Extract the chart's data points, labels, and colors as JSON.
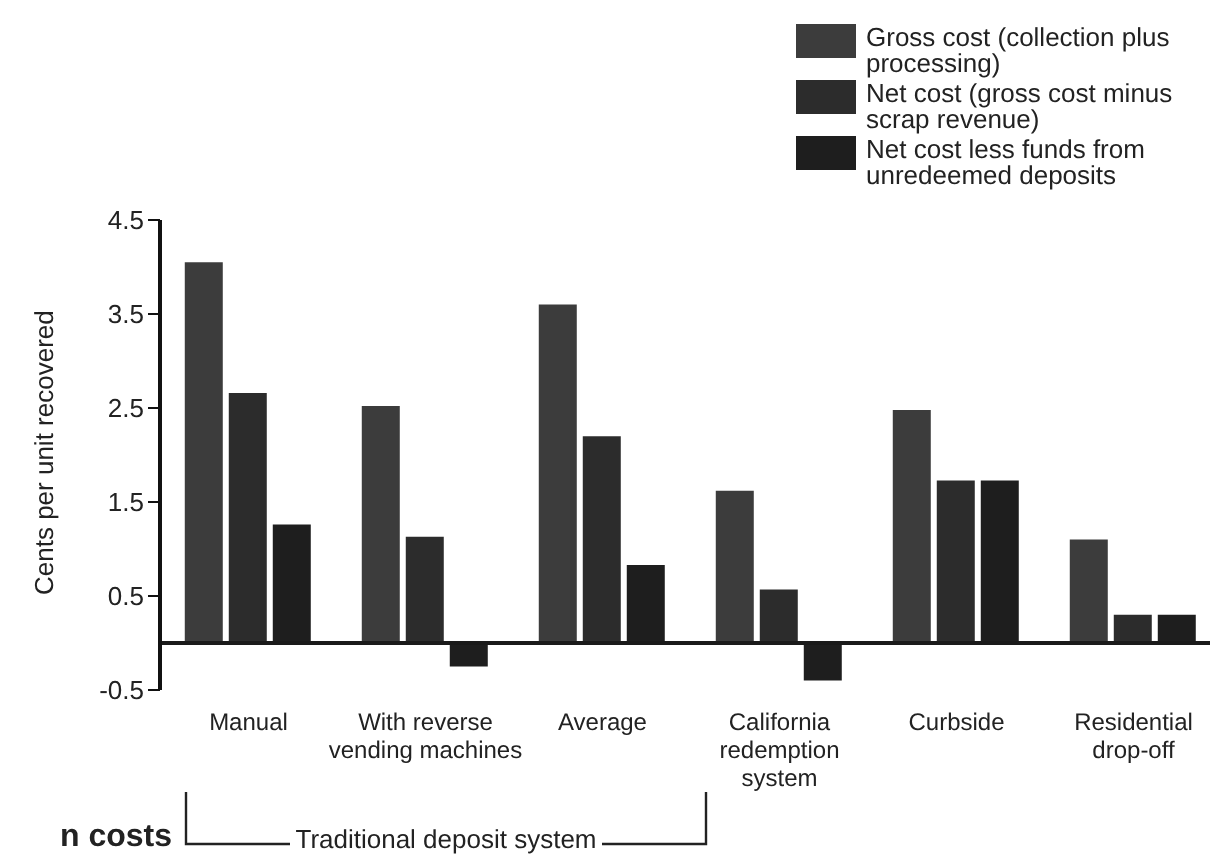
{
  "chart_data": {
    "type": "bar",
    "ylabel": "Cents per unit recovered",
    "categories": [
      "Manual",
      "With reverse vending machines",
      "Average",
      "California redemption system",
      "Curbside",
      "Residential drop-off"
    ],
    "series": [
      {
        "name": "Gross cost (collection plus processing)",
        "color": "#3c3c3c",
        "values": [
          4.05,
          2.52,
          3.6,
          1.62,
          2.48,
          1.1
        ]
      },
      {
        "name": "Net cost (gross cost minus scrap revenue)",
        "color": "#2c2c2c",
        "values": [
          2.66,
          1.13,
          2.2,
          0.57,
          1.73,
          0.3
        ]
      },
      {
        "name": "Net cost less funds from unredeemed deposits",
        "color": "#1e1e1e",
        "values": [
          1.26,
          -0.25,
          0.83,
          -0.4,
          1.73,
          0.3
        ]
      }
    ],
    "ylim": [
      -0.5,
      4.5
    ],
    "yticks": [
      -0.5,
      0.5,
      1.5,
      2.5,
      3.5,
      4.5
    ],
    "ref_lines": [
      {
        "axis": "y",
        "value": 0,
        "color": "#1a1a1a"
      }
    ],
    "grid": false,
    "legend": "top right",
    "annotations": [
      "n costs",
      "Traditional deposit system"
    ]
  }
}
